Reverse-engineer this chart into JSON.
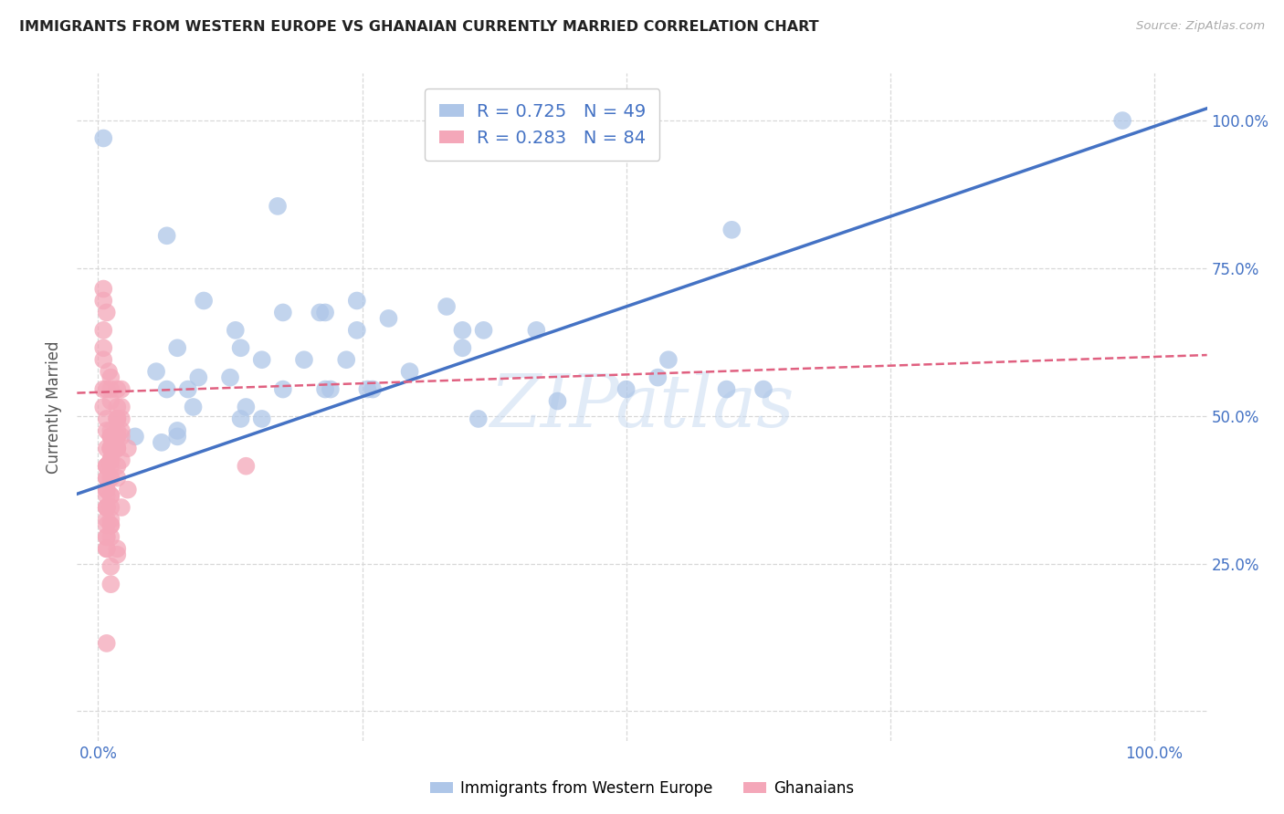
{
  "title": "IMMIGRANTS FROM WESTERN EUROPE VS GHANAIAN CURRENTLY MARRIED CORRELATION CHART",
  "source": "Source: ZipAtlas.com",
  "ylabel": "Currently Married",
  "xlim": [
    -0.02,
    1.05
  ],
  "ylim": [
    -0.05,
    1.08
  ],
  "blue_color": "#aec6e8",
  "blue_line_color": "#4472c4",
  "pink_color": "#f4a7b9",
  "pink_line_color": "#e06080",
  "legend_R1": "R = 0.725",
  "legend_N1": "N = 49",
  "legend_R2": "R = 0.283",
  "legend_N2": "N = 84",
  "watermark": "ZIPatlas",
  "tick_label_color": "#4472c4",
  "grid_color": "#d8d8d8",
  "background_color": "#ffffff",
  "blue_scatter_x": [
    0.005,
    0.97,
    0.17,
    0.065,
    0.1,
    0.21,
    0.13,
    0.175,
    0.245,
    0.215,
    0.075,
    0.155,
    0.195,
    0.135,
    0.055,
    0.095,
    0.085,
    0.125,
    0.275,
    0.345,
    0.365,
    0.415,
    0.235,
    0.215,
    0.295,
    0.345,
    0.175,
    0.255,
    0.155,
    0.135,
    0.595,
    0.075,
    0.435,
    0.075,
    0.33,
    0.065,
    0.09,
    0.5,
    0.53,
    0.54,
    0.06,
    0.035,
    0.36,
    0.245,
    0.63,
    0.6,
    0.22,
    0.26,
    0.14
  ],
  "blue_scatter_y": [
    0.97,
    1.0,
    0.855,
    0.805,
    0.695,
    0.675,
    0.645,
    0.675,
    0.695,
    0.675,
    0.615,
    0.595,
    0.595,
    0.615,
    0.575,
    0.565,
    0.545,
    0.565,
    0.665,
    0.645,
    0.645,
    0.645,
    0.595,
    0.545,
    0.575,
    0.615,
    0.545,
    0.545,
    0.495,
    0.495,
    0.545,
    0.475,
    0.525,
    0.465,
    0.685,
    0.545,
    0.515,
    0.545,
    0.565,
    0.595,
    0.455,
    0.465,
    0.495,
    0.645,
    0.545,
    0.815,
    0.545,
    0.545,
    0.515
  ],
  "pink_scatter_x": [
    0.005,
    0.005,
    0.008,
    0.005,
    0.005,
    0.005,
    0.01,
    0.005,
    0.008,
    0.005,
    0.012,
    0.012,
    0.012,
    0.008,
    0.008,
    0.018,
    0.018,
    0.018,
    0.022,
    0.022,
    0.022,
    0.018,
    0.012,
    0.012,
    0.018,
    0.018,
    0.012,
    0.012,
    0.012,
    0.018,
    0.012,
    0.012,
    0.012,
    0.012,
    0.022,
    0.022,
    0.018,
    0.018,
    0.012,
    0.012,
    0.018,
    0.008,
    0.012,
    0.008,
    0.008,
    0.008,
    0.008,
    0.008,
    0.008,
    0.012,
    0.018,
    0.022,
    0.012,
    0.012,
    0.018,
    0.012,
    0.008,
    0.008,
    0.008,
    0.008,
    0.012,
    0.012,
    0.008,
    0.018,
    0.018,
    0.012,
    0.022,
    0.028,
    0.14,
    0.012,
    0.012,
    0.008,
    0.008,
    0.012,
    0.008,
    0.028,
    0.008,
    0.008,
    0.012,
    0.008,
    0.008,
    0.012,
    0.018,
    0.012
  ],
  "pink_scatter_y": [
    0.715,
    0.695,
    0.675,
    0.645,
    0.615,
    0.595,
    0.575,
    0.545,
    0.545,
    0.515,
    0.565,
    0.545,
    0.525,
    0.495,
    0.475,
    0.545,
    0.515,
    0.495,
    0.545,
    0.515,
    0.495,
    0.475,
    0.465,
    0.465,
    0.495,
    0.465,
    0.465,
    0.445,
    0.445,
    0.465,
    0.445,
    0.445,
    0.425,
    0.425,
    0.475,
    0.465,
    0.445,
    0.445,
    0.425,
    0.415,
    0.445,
    0.415,
    0.395,
    0.415,
    0.395,
    0.395,
    0.375,
    0.375,
    0.345,
    0.395,
    0.415,
    0.425,
    0.365,
    0.365,
    0.395,
    0.345,
    0.345,
    0.325,
    0.315,
    0.295,
    0.315,
    0.295,
    0.275,
    0.275,
    0.265,
    0.315,
    0.345,
    0.375,
    0.415,
    0.245,
    0.215,
    0.115,
    0.445,
    0.425,
    0.415,
    0.445,
    0.365,
    0.345,
    0.325,
    0.295,
    0.275,
    0.475,
    0.495,
    0.445
  ]
}
